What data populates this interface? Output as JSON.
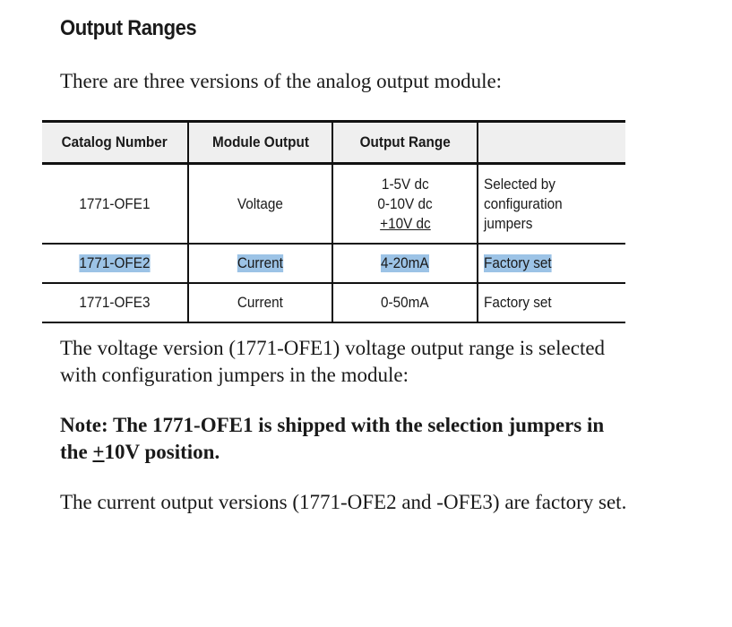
{
  "heading": "Output Ranges",
  "intro": "There are three versions of the analog output module:",
  "table": {
    "headers": [
      "Catalog Number",
      "Module Output",
      "Output Range",
      ""
    ],
    "rows": [
      {
        "catalog": "1771-OFE1",
        "output": "Voltage",
        "range": [
          "1-5V dc",
          "0-10V dc",
          "+10V dc"
        ],
        "note": [
          "Selected by",
          "configuration",
          "jumpers"
        ]
      },
      {
        "catalog": "1771-OFE2",
        "output": "Current",
        "range": [
          "4-20mA"
        ],
        "note": [
          "Factory set"
        ],
        "highlighted": true
      },
      {
        "catalog": "1771-OFE3",
        "output": "Current",
        "range": [
          "0-50mA"
        ],
        "note": [
          "Factory set"
        ]
      }
    ]
  },
  "para1": [
    "The voltage version (1771-OFE1) voltage output range is selected",
    "with configuration jumpers in the module:"
  ],
  "note": [
    "Note: The 1771-OFE1 is shipped with the selection jumpers in",
    "the ",
    "+",
    "10V position."
  ],
  "para2": "The current output versions (1771-OFE2 and -OFE3) are factory set.",
  "colors": {
    "highlight": "#9cc3e6",
    "header_bg": "#efefef"
  }
}
